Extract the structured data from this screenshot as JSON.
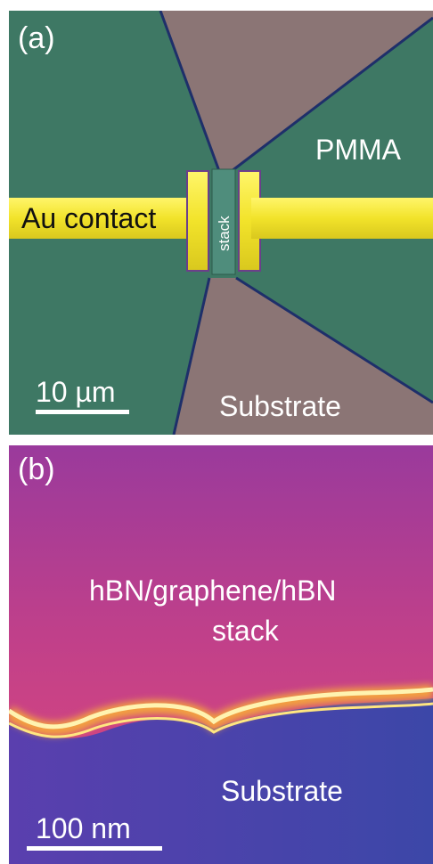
{
  "panel_a": {
    "letter": "(a)",
    "labels": {
      "pmma": "PMMA",
      "au_contact": "Au contact",
      "stack": "stack",
      "substrate": "Substrate",
      "scale": "10 µm"
    },
    "colors": {
      "pmma": "#3e7864",
      "substrate": "#8b7575",
      "gold": "#f2e32a"
    }
  },
  "panel_b": {
    "letter": "(b)",
    "labels": {
      "stack_line1": "hBN/graphene/hBN",
      "stack_line2": "stack",
      "substrate": "Substrate",
      "scale": "100 nm"
    },
    "colors": {
      "stack": "#b23b82",
      "substrate": "#4d3fa8",
      "interface": "#fff3b0"
    }
  }
}
